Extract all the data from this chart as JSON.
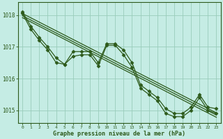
{
  "xlabel": "Graphe pression niveau de la mer (hPa)",
  "bg_color": "#c5ece4",
  "grid_color": "#99ccbb",
  "line_color": "#2d5a1b",
  "marker_color": "#2d5a1b",
  "ylim": [
    1014.6,
    1018.4
  ],
  "xlim": [
    -0.5,
    23.5
  ],
  "yticks": [
    1015,
    1016,
    1017,
    1018
  ],
  "xticks": [
    0,
    1,
    2,
    3,
    4,
    5,
    6,
    7,
    8,
    9,
    10,
    11,
    12,
    13,
    14,
    15,
    16,
    17,
    18,
    19,
    20,
    21,
    22,
    23
  ],
  "series_jagged": [
    [
      1018.1,
      1017.65,
      1017.3,
      1017.0,
      1016.65,
      1016.45,
      1016.85,
      1016.85,
      1016.85,
      1016.5,
      1017.1,
      1017.1,
      1016.9,
      1016.5,
      1015.8,
      1015.6,
      1015.4,
      1015.05,
      1014.9,
      1014.9,
      1015.1,
      1015.5,
      1015.1,
      1015.05
    ],
    [
      1018.05,
      1017.55,
      1017.2,
      1016.9,
      1016.5,
      1016.45,
      1016.7,
      1016.75,
      1016.75,
      1016.4,
      1017.05,
      1017.05,
      1016.75,
      1016.35,
      1015.7,
      1015.5,
      1015.3,
      1014.9,
      1014.8,
      1014.8,
      1015.0,
      1015.4,
      1015.0,
      1014.9
    ]
  ],
  "series_straight": [
    [
      [
        0,
        1018.05
      ],
      [
        23,
        1014.92
      ]
    ],
    [
      [
        0,
        1017.98
      ],
      [
        23,
        1014.85
      ]
    ],
    [
      [
        0,
        1017.92
      ],
      [
        23,
        1014.78
      ]
    ]
  ],
  "marker": "D",
  "markersize": 2.5,
  "linewidth_jagged": 0.9,
  "linewidth_straight": 0.9
}
